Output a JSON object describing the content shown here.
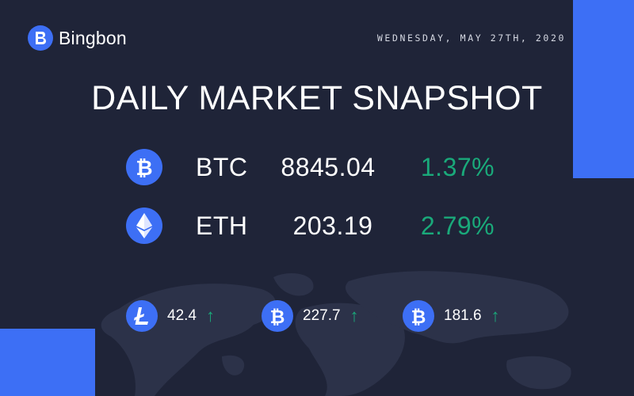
{
  "brand": {
    "name": "Bingbon"
  },
  "header": {
    "date": "WEDNESDAY, MAY 27TH, 2020"
  },
  "title": "DAILY MARKET SNAPSHOT",
  "main_coins": [
    {
      "icon": "bitcoin-icon",
      "symbol": "BTC",
      "price": "8845.04",
      "change": "1.37%"
    },
    {
      "icon": "ethereum-icon",
      "symbol": "ETH",
      "price": "203.19",
      "change": "2.79%"
    }
  ],
  "mini_coins": [
    {
      "icon": "litecoin-icon",
      "value": "42.4",
      "arrow": "↑"
    },
    {
      "icon": "bitcoin-icon",
      "value": "227.7",
      "arrow": "↑"
    },
    {
      "icon": "bitcoin-icon",
      "value": "181.6",
      "arrow": "↑"
    }
  ],
  "colors": {
    "background": "#1f2438",
    "accent": "#3d6ff5",
    "positive": "#1aa97a"
  }
}
